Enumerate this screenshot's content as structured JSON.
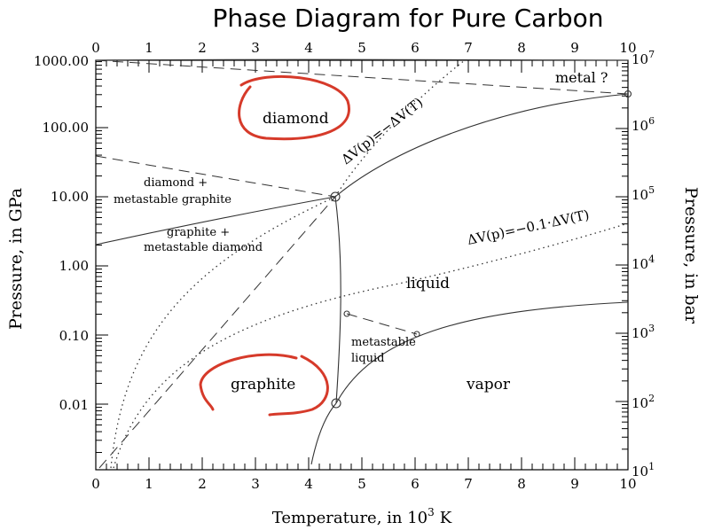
{
  "title": "Phase Diagram for Pure Carbon",
  "x_axis": {
    "label": "Temperature, in 10",
    "label_sup": "3",
    "label_unit": "K",
    "ticks": [
      "0",
      "1",
      "2",
      "3",
      "4",
      "5",
      "6",
      "7",
      "8",
      "9",
      "10"
    ]
  },
  "y_axis_left": {
    "label": "Pressure, in GPa",
    "ticks": [
      "0.01",
      "0.10",
      "1.00",
      "10.00",
      "100.00",
      "1000.00"
    ]
  },
  "y_axis_right": {
    "label": "Pressure, in bar",
    "ticks": [
      {
        "base": "10",
        "exp": "1"
      },
      {
        "base": "10",
        "exp": "2"
      },
      {
        "base": "10",
        "exp": "3"
      },
      {
        "base": "10",
        "exp": "4"
      },
      {
        "base": "10",
        "exp": "5"
      },
      {
        "base": "10",
        "exp": "6"
      },
      {
        "base": "10",
        "exp": "7"
      }
    ]
  },
  "regions": {
    "diamond": "diamond",
    "graphite": "graphite",
    "liquid": "liquid",
    "vapor": "vapor",
    "metal": "metal ?",
    "diamond_meta_1": "diamond +",
    "diamond_meta_2": "metastable graphite",
    "graphite_meta_1": "graphite +",
    "graphite_meta_2": "metastable diamond",
    "meta_liquid_1": "metastable",
    "meta_liquid_2": "liquid"
  },
  "annotations": {
    "dv_line_1": "ΔV(p)=−ΔV(T)",
    "dv_line_2": "ΔV(p)=−0.1·ΔV(T)"
  },
  "colors": {
    "line": "#333333",
    "highlight": "#d63a2a"
  }
}
